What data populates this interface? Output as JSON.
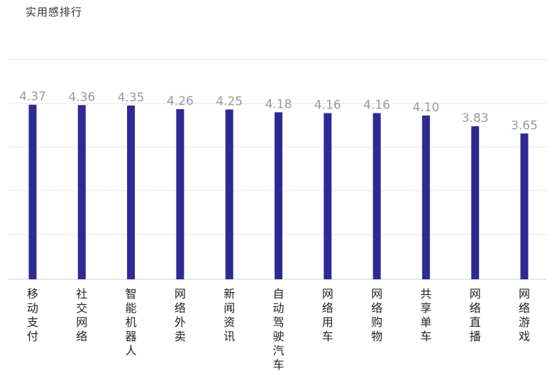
{
  "chart_data": {
    "type": "bar",
    "title": "实用感排行",
    "categories": [
      "移动支付",
      "社交网络",
      "智能机器人",
      "网络外卖",
      "新闻资讯",
      "自动驾驶汽车",
      "网络用车",
      "网络购物",
      "共享单车",
      "网络直播",
      "网络游戏"
    ],
    "values": [
      4.37,
      4.36,
      4.35,
      4.26,
      4.25,
      4.18,
      4.16,
      4.16,
      4.1,
      3.83,
      3.65
    ],
    "value_labels": [
      "4.37",
      "4.36",
      "4.35",
      "4.26",
      "4.25",
      "4.18",
      "4.16",
      "4.16",
      "4.10",
      "3.83",
      "3.65"
    ],
    "xlabel": "",
    "ylabel": "",
    "ylim": [
      0,
      5.5
    ],
    "grid": true,
    "legend": "none",
    "bar_color": "#2e2a94",
    "label_color": "#9a9a9a",
    "grid_color": "#e6e6e6"
  }
}
